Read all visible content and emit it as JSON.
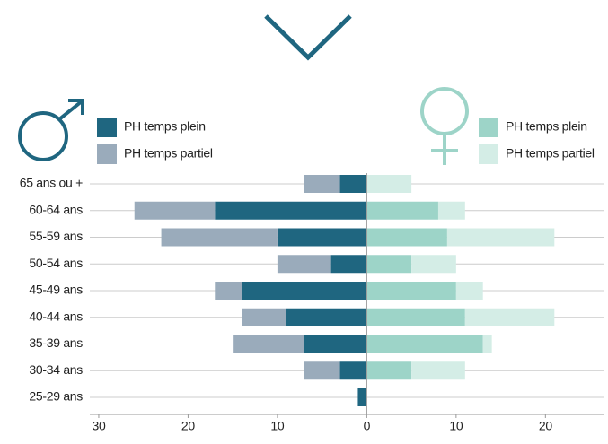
{
  "chart_data": {
    "type": "bar",
    "orientation": "horizontal",
    "stacked": true,
    "categories": [
      "65 ans ou +",
      "60-64 ans",
      "55-59 ans",
      "50-54 ans",
      "45-49 ans",
      "40-44 ans",
      "35-39 ans",
      "30-34 ans",
      "25-29 ans"
    ],
    "series": [
      {
        "name": "PH temps plein",
        "color": "#1f6680",
        "values": [
          -3,
          -17,
          -10,
          -4,
          -14,
          -9,
          -7,
          -3,
          -1
        ]
      },
      {
        "name": "PH temps partiel",
        "color": "#9aabbb",
        "values": [
          -4,
          -9,
          -13,
          -6,
          -3,
          -5,
          -8,
          -4,
          0
        ]
      },
      {
        "name": "PH temps plein",
        "color": "#9dd4c8",
        "values": [
          0,
          8,
          9,
          5,
          10,
          11,
          13,
          5,
          0
        ]
      },
      {
        "name": "PH temps partiel",
        "color": "#d4ede6",
        "values": [
          5,
          3,
          12,
          5,
          3,
          10,
          1,
          6,
          0
        ]
      }
    ],
    "xlim": [
      -31,
      26.5
    ],
    "xticks": [
      {
        "value": -30,
        "label": "30"
      },
      {
        "value": -20,
        "label": "20"
      },
      {
        "value": -10,
        "label": "10"
      },
      0,
      10,
      20
    ],
    "grid": true
  }
}
